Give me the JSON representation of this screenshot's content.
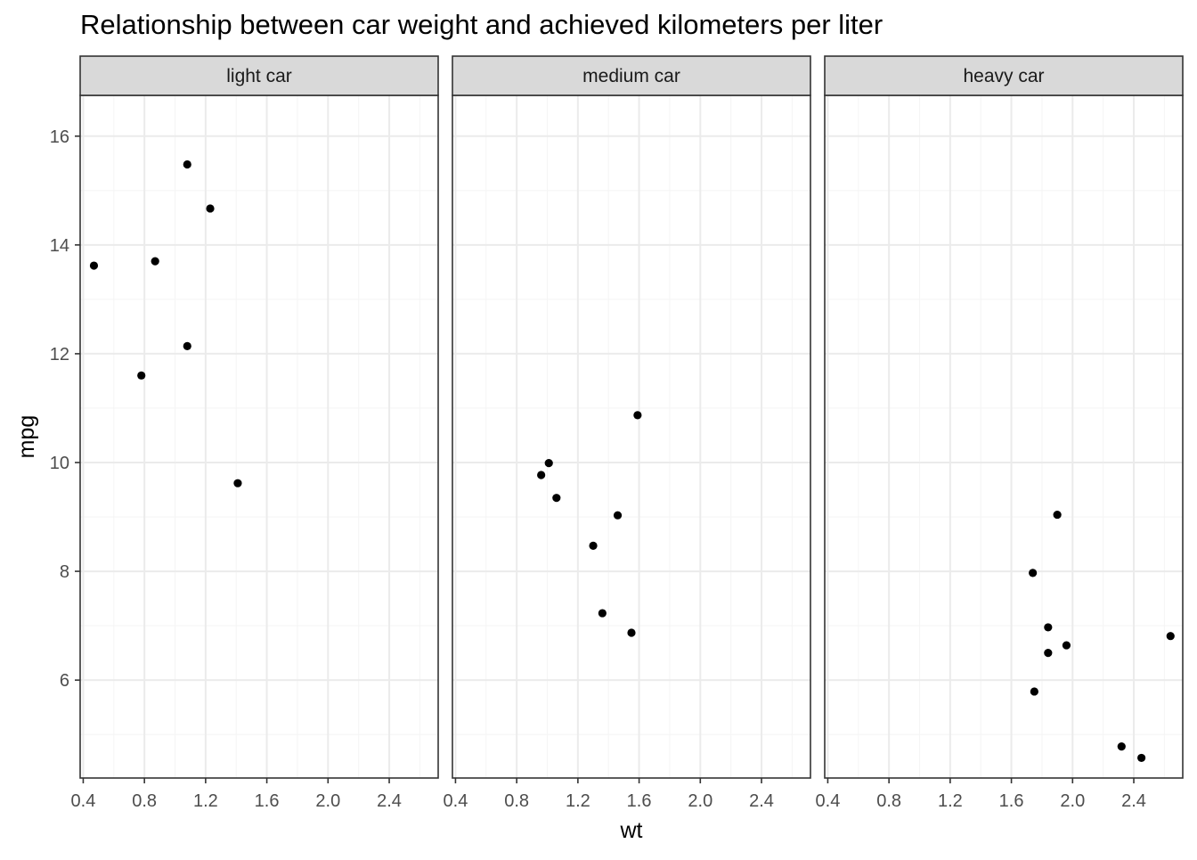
{
  "chart_data": {
    "type": "scatter",
    "title": "Relationship between car weight and achieved kilometers per liter",
    "xlabel": "wt",
    "ylabel": "mpg",
    "xlim": [
      0.38,
      2.72
    ],
    "ylim": [
      4.2,
      16.75
    ],
    "x_major_ticks": [
      0.4,
      0.8,
      1.2,
      1.6,
      2.0,
      2.4
    ],
    "x_tick_labels": [
      "0.4",
      "0.8",
      "1.2",
      "1.6",
      "2.0",
      "2.4"
    ],
    "y_major_ticks": [
      6,
      8,
      10,
      12,
      14,
      16
    ],
    "y_tick_labels": [
      "6",
      "8",
      "10",
      "12",
      "14",
      "16"
    ],
    "grid": true,
    "colors": {
      "point": "#000000",
      "strip_fill": "#d9d9d9",
      "panel_border": "#333333",
      "grid_major": "#ebebeb",
      "grid_minor": "#f5f5f5",
      "axis_text": "#4d4d4d"
    },
    "panels": [
      {
        "label": "light car",
        "points": [
          {
            "x": 0.47,
            "y": 13.62
          },
          {
            "x": 0.78,
            "y": 11.6
          },
          {
            "x": 0.87,
            "y": 13.7
          },
          {
            "x": 1.08,
            "y": 15.48
          },
          {
            "x": 1.08,
            "y": 12.14
          },
          {
            "x": 1.23,
            "y": 14.67
          },
          {
            "x": 1.41,
            "y": 9.62
          }
        ]
      },
      {
        "label": "medium car",
        "points": [
          {
            "x": 0.96,
            "y": 9.77
          },
          {
            "x": 1.01,
            "y": 9.99
          },
          {
            "x": 1.06,
            "y": 9.35
          },
          {
            "x": 1.3,
            "y": 8.47
          },
          {
            "x": 1.36,
            "y": 7.23
          },
          {
            "x": 1.46,
            "y": 9.03
          },
          {
            "x": 1.55,
            "y": 6.87
          },
          {
            "x": 1.59,
            "y": 10.87
          }
        ]
      },
      {
        "label": "heavy car",
        "points": [
          {
            "x": 1.74,
            "y": 7.97
          },
          {
            "x": 1.75,
            "y": 5.79
          },
          {
            "x": 1.84,
            "y": 6.97
          },
          {
            "x": 1.84,
            "y": 6.5
          },
          {
            "x": 1.9,
            "y": 9.04
          },
          {
            "x": 1.96,
            "y": 6.64
          },
          {
            "x": 2.32,
            "y": 4.78
          },
          {
            "x": 2.45,
            "y": 4.57
          },
          {
            "x": 2.64,
            "y": 6.81
          }
        ]
      }
    ]
  }
}
